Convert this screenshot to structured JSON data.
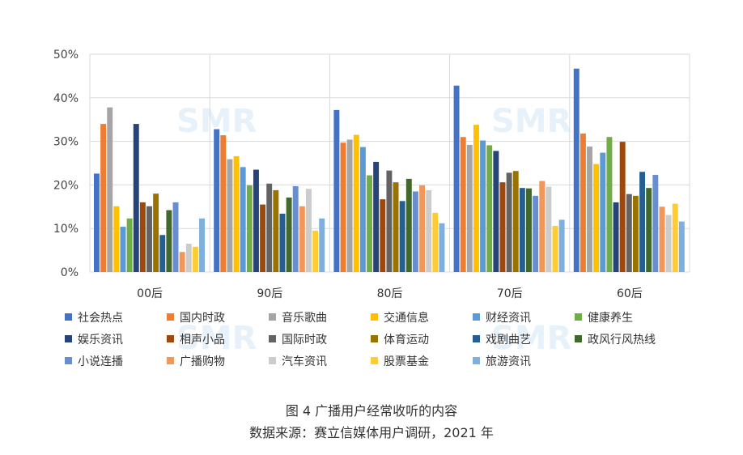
{
  "caption": {
    "title": "图 4  广播用户经常收听的内容",
    "source": "数据来源：赛立信媒体用户调研，2021 年"
  },
  "watermark": "SMR",
  "chart_data": {
    "type": "bar",
    "categories": [
      "00后",
      "90后",
      "80后",
      "70后",
      "60后"
    ],
    "ylim": [
      0,
      50
    ],
    "yticks": [
      "0%",
      "10%",
      "20%",
      "30%",
      "40%",
      "50%"
    ],
    "grid": true,
    "legend_position": "bottom",
    "series": [
      {
        "name": "社会热点",
        "color": "#4472C4",
        "values": [
          22.6,
          32.8,
          37.2,
          42.8,
          46.7
        ]
      },
      {
        "name": "国内时政",
        "color": "#ED7D31",
        "values": [
          34.0,
          31.4,
          29.7,
          31.0,
          31.8
        ]
      },
      {
        "name": "音乐歌曲",
        "color": "#A5A5A5",
        "values": [
          37.8,
          25.9,
          30.4,
          29.2,
          28.8
        ]
      },
      {
        "name": "交通信息",
        "color": "#FFC000",
        "values": [
          15.1,
          26.6,
          31.5,
          33.8,
          24.8
        ]
      },
      {
        "name": "财经资讯",
        "color": "#5B9BD5",
        "values": [
          10.4,
          24.1,
          28.7,
          30.2,
          27.4
        ]
      },
      {
        "name": "健康养生",
        "color": "#70AD47",
        "values": [
          12.3,
          19.9,
          22.2,
          29.1,
          31.0
        ]
      },
      {
        "name": "娱乐资讯",
        "color": "#264478",
        "values": [
          34.0,
          23.5,
          25.3,
          27.8,
          16.0
        ]
      },
      {
        "name": "相声小品",
        "color": "#9E480E",
        "values": [
          16.0,
          15.5,
          16.7,
          20.6,
          29.9
        ]
      },
      {
        "name": "国际时政",
        "color": "#636363",
        "values": [
          15.1,
          20.3,
          23.3,
          22.8,
          17.9
        ]
      },
      {
        "name": "体育运动",
        "color": "#997300",
        "values": [
          18.0,
          18.8,
          20.6,
          23.2,
          17.5
        ]
      },
      {
        "name": "戏剧曲艺",
        "color": "#255E91",
        "values": [
          8.5,
          13.4,
          16.3,
          19.3,
          23.0
        ]
      },
      {
        "name": "政风行风热线",
        "color": "#43682B",
        "values": [
          14.2,
          17.1,
          21.4,
          19.2,
          19.3
        ]
      },
      {
        "name": "小说连播",
        "color": "#698ED0",
        "values": [
          16.0,
          19.7,
          18.5,
          17.5,
          22.3
        ]
      },
      {
        "name": "广播购物",
        "color": "#F1975A",
        "values": [
          4.6,
          15.1,
          19.9,
          20.9,
          15.0
        ]
      },
      {
        "name": "汽车资讯",
        "color": "#CCCCCC",
        "values": [
          6.5,
          19.1,
          18.8,
          19.6,
          13.1
        ]
      },
      {
        "name": "股票基金",
        "color": "#FFCD33",
        "values": [
          5.8,
          9.5,
          13.6,
          10.6,
          15.7
        ]
      },
      {
        "name": "旅游资讯",
        "color": "#7FB0DD",
        "values": [
          12.3,
          12.3,
          11.2,
          12.0,
          11.6
        ]
      }
    ]
  }
}
